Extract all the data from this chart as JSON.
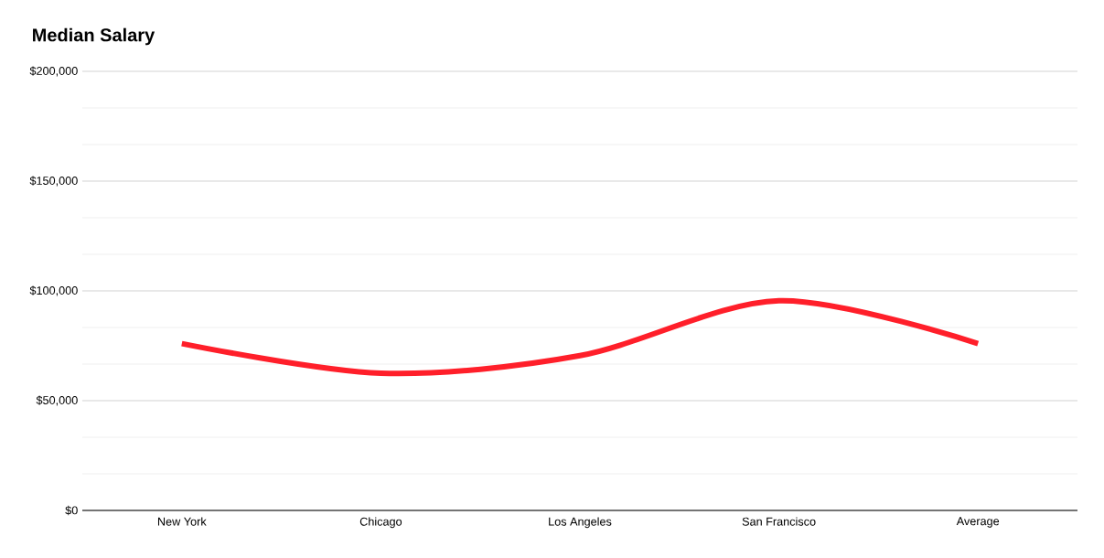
{
  "chart_data": {
    "type": "line",
    "title": "Median Salary",
    "categories": [
      "New York",
      "Chicago",
      "Los Angeles",
      "San Francisco",
      "Average"
    ],
    "series": [
      {
        "color": "#ff1f2a",
        "values": [
          76000,
          62500,
          70500,
          95500,
          76000
        ]
      }
    ],
    "ylim": [
      0,
      200000
    ],
    "yticks": [
      {
        "value": 0,
        "label": "$0"
      },
      {
        "value": 50000,
        "label": "$50,000"
      },
      {
        "value": 100000,
        "label": "$100,000"
      },
      {
        "value": 150000,
        "label": "$150,000"
      },
      {
        "value": 200000,
        "label": "$200,000"
      }
    ],
    "grid": "y",
    "marker": "none",
    "line_style": "solid"
  }
}
